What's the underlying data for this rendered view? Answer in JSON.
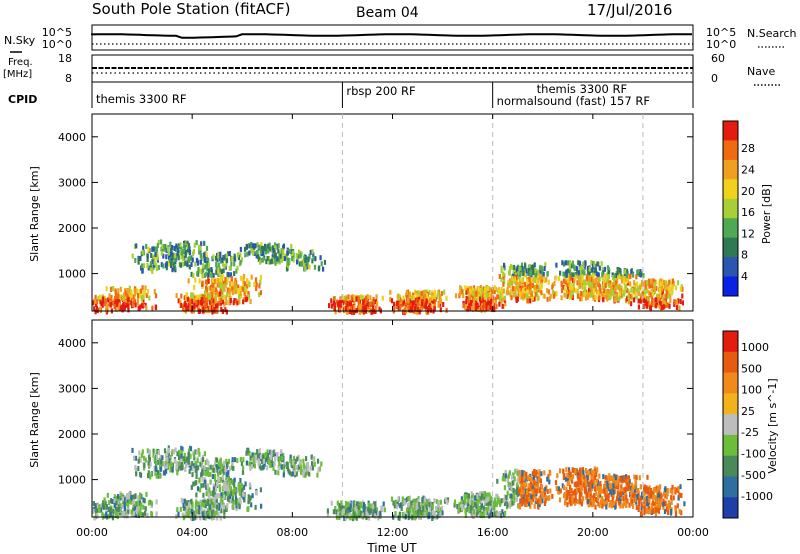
{
  "header": {
    "station": "South Pole Station (fitACF)",
    "beam": "Beam 04",
    "date": "17/Jul/2016"
  },
  "labels": {
    "nsky": "N.Sky",
    "nsearch": "N.Search",
    "freq_line1": "Freq.",
    "freq_line2": "[MHz]",
    "nave": "Nave",
    "cpid": "CPID",
    "nsky_ticks": [
      "10^5",
      "10^0"
    ],
    "freq_ticks": [
      "18",
      "8"
    ],
    "nave_ticks": [
      "60",
      "0"
    ]
  },
  "cpid_segments": [
    {
      "start_hour": 0,
      "end_hour": 10,
      "label": "themis 3300 RF"
    },
    {
      "start_hour": 10,
      "end_hour": 16,
      "label": "rbsp 200 RF"
    },
    {
      "start_hour": 16,
      "end_hour": 24,
      "label": "themis 3300 RF"
    },
    {
      "start_hour": 16,
      "end_hour": 24,
      "label": "normalsound (fast) 157 RF"
    }
  ],
  "chart_data": {
    "type": "heatmap",
    "xlabel": "Time UT",
    "x_tick_labels": [
      "00:00",
      "04:00",
      "08:00",
      "12:00",
      "16:00",
      "20:00",
      "00:00"
    ],
    "xlim_hours": [
      0,
      24
    ],
    "dashed_lines_hours": [
      10,
      16,
      22
    ],
    "panels": [
      {
        "name": "power",
        "ylabel": "Slant Range [km]",
        "ylim": [
          180,
          4500
        ],
        "y_ticks": [
          1000,
          2000,
          3000,
          4000
        ],
        "colorbar_label": "Power [dB]",
        "colorbar_ticks": [
          "4",
          "8",
          "12",
          "16",
          "20",
          "24",
          "28"
        ],
        "colorbar_range": [
          0,
          30
        ],
        "colors": [
          "#0a22e6",
          "#2a55b0",
          "#2f7a55",
          "#4ea854",
          "#a8cf35",
          "#f0d21c",
          "#f0a020",
          "#f06a10",
          "#e41b10"
        ]
      },
      {
        "name": "velocity",
        "ylabel": "Slant Range [km]",
        "ylim": [
          180,
          4500
        ],
        "y_ticks": [
          1000,
          2000,
          3000,
          4000
        ],
        "colorbar_label": "Velocity [m s^-1]",
        "colorbar_ticks": [
          "1000",
          "500",
          "100",
          "25",
          "-25",
          "-100",
          "-500",
          "-1000"
        ],
        "colors": [
          "#1e3fa8",
          "#2f6fa0",
          "#4a8a5a",
          "#6cbd3a",
          "#bdbdbd",
          "#f2b21c",
          "#f08a1c",
          "#e85a10",
          "#e41b10"
        ]
      }
    ]
  }
}
